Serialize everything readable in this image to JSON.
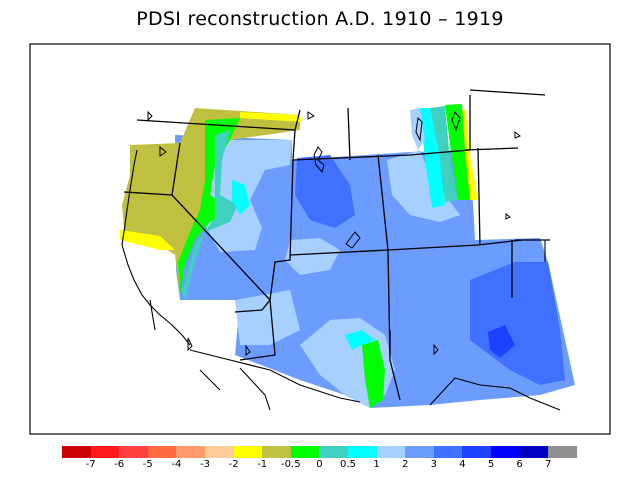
{
  "map": {
    "title": "PDSI reconstruction A.D. 1910 – 1919"
  },
  "legend": {
    "colors": [
      "#cc0000",
      "#ff1a1a",
      "#ff4040",
      "#ff6a40",
      "#ff9a6a",
      "#ffcc99",
      "#ffff00",
      "#c0c040",
      "#00ff00",
      "#40d0c0",
      "#00ffff",
      "#a8d0ff",
      "#6c9cff",
      "#4070ff",
      "#2040ff",
      "#0000ff",
      "#0000c0",
      "#909090"
    ],
    "labels": [
      "-7",
      "-6",
      "-5",
      "-4",
      "-3",
      "-2",
      "-1",
      "-0.5",
      "0",
      "0.5",
      "1",
      "2",
      "3",
      "4",
      "5",
      "6",
      "7"
    ]
  }
}
